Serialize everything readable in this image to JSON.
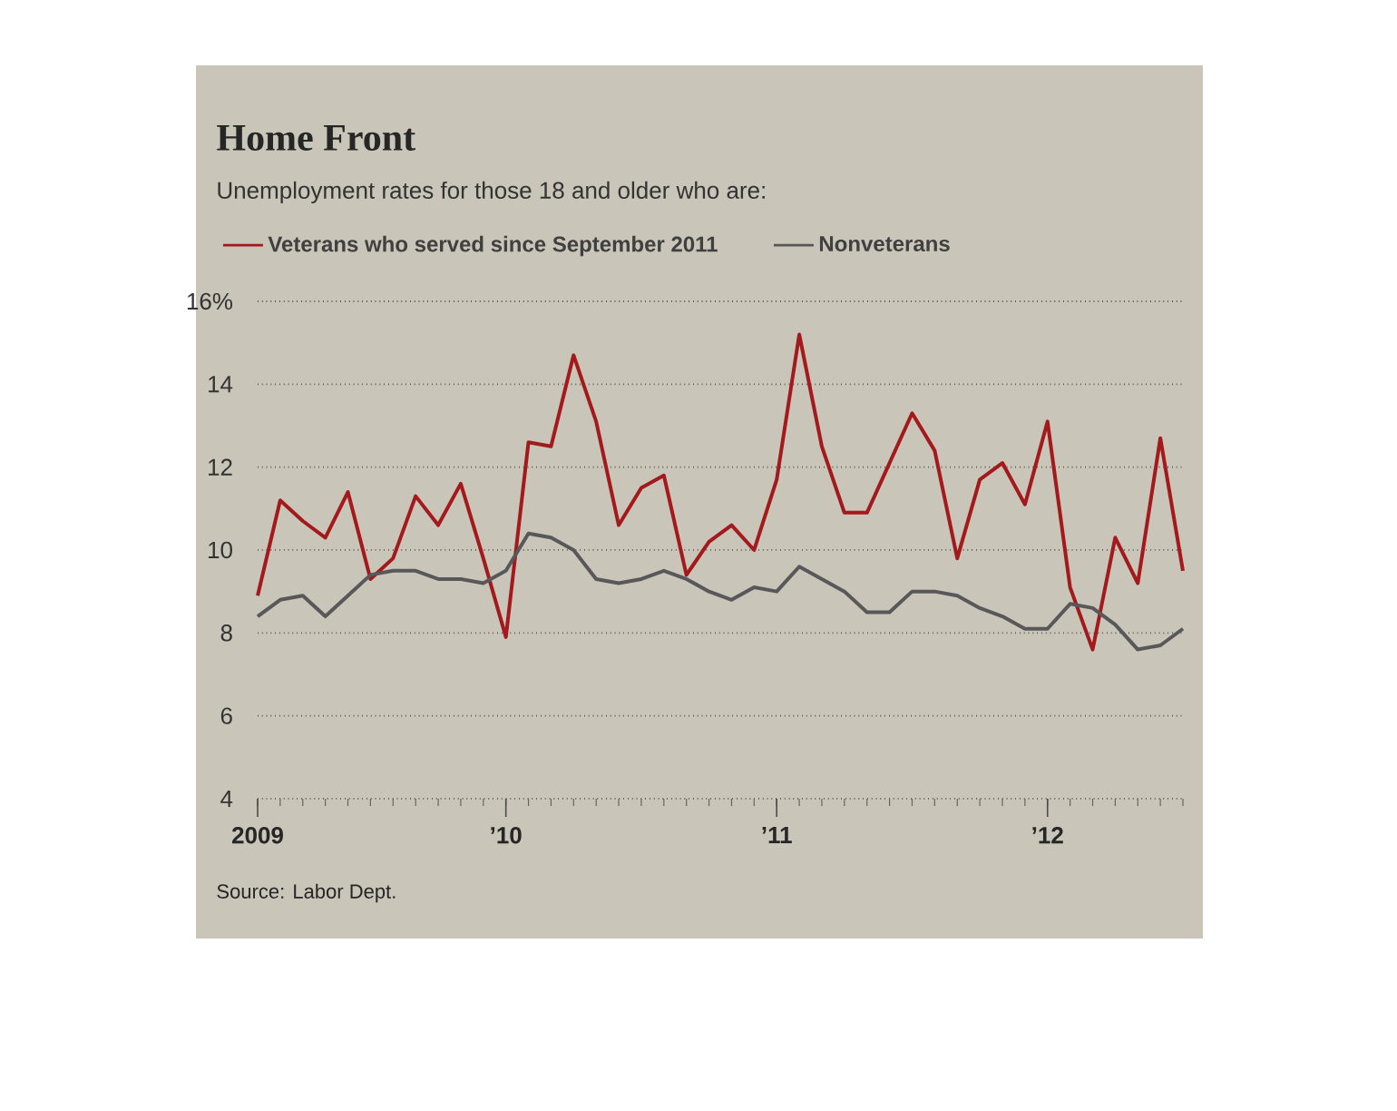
{
  "chart_data": {
    "type": "line",
    "title": "Home Front",
    "subtitle": "Unemployment rates for those 18 and older who are:",
    "x": [
      "2009-02",
      "2009-03",
      "2009-04",
      "2009-05",
      "2009-06",
      "2009-07",
      "2009-08",
      "2009-09",
      "2009-10",
      "2009-11",
      "2009-12",
      "2010-01",
      "2010-02",
      "2010-03",
      "2010-04",
      "2010-05",
      "2010-06",
      "2010-07",
      "2010-08",
      "2010-09",
      "2010-10",
      "2010-11",
      "2010-12",
      "2011-01",
      "2011-02",
      "2011-03",
      "2011-04",
      "2011-05",
      "2011-06",
      "2011-07",
      "2011-08",
      "2011-09",
      "2011-10",
      "2011-11",
      "2011-12",
      "2012-01",
      "2012-02",
      "2012-03",
      "2012-04",
      "2012-05",
      "2012-06",
      "2012-07"
    ],
    "series": [
      {
        "name": "Veterans who served since September 2011",
        "color": "#a3191c",
        "values": [
          8.9,
          11.2,
          10.7,
          10.3,
          11.4,
          9.3,
          9.8,
          11.3,
          10.6,
          11.6,
          9.8,
          7.9,
          12.6,
          12.5,
          14.7,
          13.1,
          10.6,
          11.5,
          11.8,
          9.4,
          10.2,
          10.6,
          10.0,
          11.7,
          15.2,
          12.5,
          10.9,
          10.9,
          12.1,
          13.3,
          12.4,
          9.8,
          11.7,
          12.1,
          11.1,
          13.1,
          9.1,
          7.6,
          10.3,
          9.2,
          12.7,
          9.5
        ]
      },
      {
        "name": "Nonveterans",
        "color": "#58585a",
        "values": [
          8.4,
          8.8,
          8.9,
          8.4,
          8.9,
          9.4,
          9.5,
          9.5,
          9.3,
          9.3,
          9.2,
          9.5,
          10.4,
          10.3,
          10.0,
          9.3,
          9.2,
          9.3,
          9.5,
          9.3,
          9.0,
          8.8,
          9.1,
          9.0,
          9.6,
          9.3,
          9.0,
          8.5,
          8.5,
          9.0,
          9.0,
          8.9,
          8.6,
          8.4,
          8.1,
          8.1,
          8.7,
          8.6,
          8.2,
          7.6,
          7.7,
          8.1
        ]
      }
    ],
    "xlim": [
      "2009-02",
      "2012-07"
    ],
    "xticks": [
      {
        "value": "2009-02",
        "label": "2009"
      },
      {
        "value": "2010-01",
        "label": "’10"
      },
      {
        "value": "2011-01",
        "label": "’11"
      },
      {
        "value": "2012-01",
        "label": "’12"
      }
    ],
    "ylim": [
      4,
      16
    ],
    "yticks": [
      4,
      6,
      8,
      10,
      12,
      {
        "value": 16,
        "label": "16%"
      },
      14
    ],
    "grid": "y",
    "legend": "top left",
    "marker": "none",
    "line_style": "solid",
    "annotations": [
      "Source: Labor Dept."
    ]
  }
}
